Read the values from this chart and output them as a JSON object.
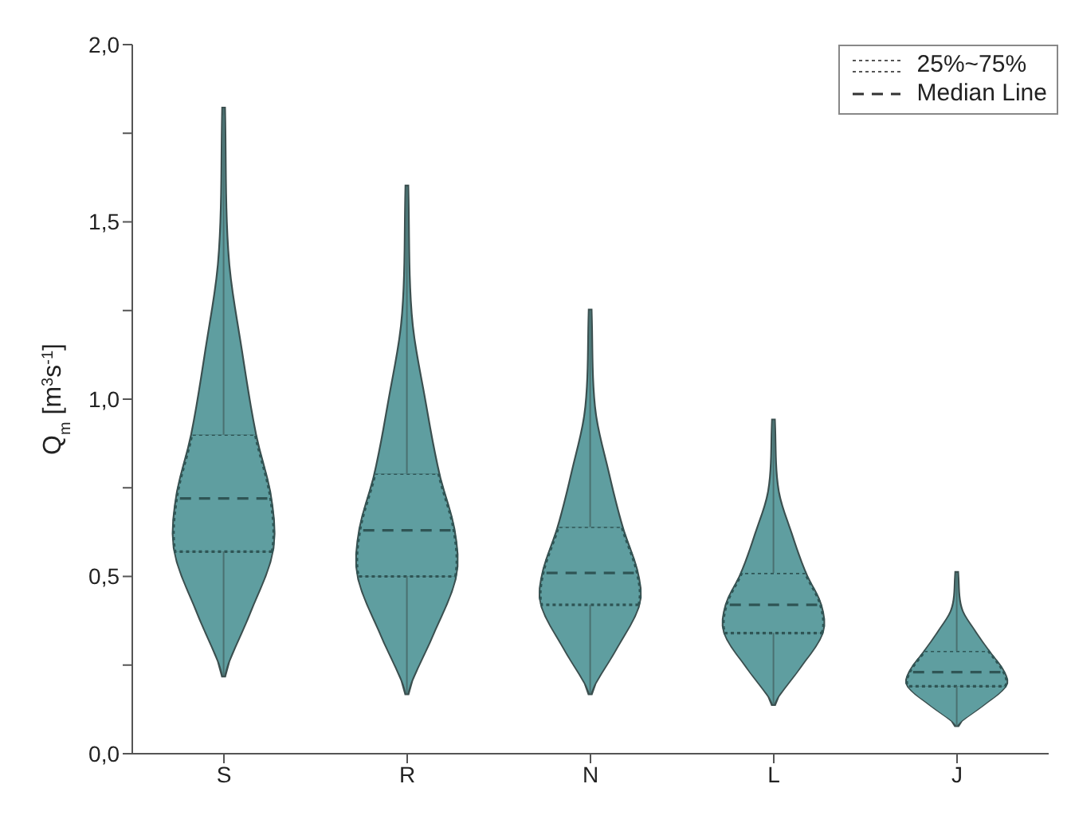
{
  "chart_data": {
    "type": "box",
    "ylabel": "Q$_{m}$ [m$^{3}$s$^{-1}$]",
    "categories": [
      "S",
      "R",
      "N",
      "L",
      "J"
    ],
    "color": "#5f9ea0",
    "boxes": [
      {
        "low": 0.22,
        "q1": 0.57,
        "median": 0.72,
        "q3": 0.9,
        "high": 1.82
      },
      {
        "low": 0.17,
        "q1": 0.5,
        "median": 0.63,
        "q3": 0.79,
        "high": 1.6
      },
      {
        "low": 0.17,
        "q1": 0.42,
        "median": 0.51,
        "q3": 0.64,
        "high": 1.25
      },
      {
        "low": 0.14,
        "q1": 0.34,
        "median": 0.42,
        "q3": 0.51,
        "high": 0.94
      },
      {
        "low": 0.08,
        "q1": 0.19,
        "median": 0.23,
        "q3": 0.29,
        "high": 0.51
      }
    ],
    "ylim": [
      0,
      2
    ],
    "yticks": [
      {
        "value": 0,
        "label": "0,0"
      },
      {
        "value": 0.25,
        "label": null
      },
      {
        "value": 0.5,
        "label": "0,5"
      },
      {
        "value": 0.75,
        "label": null
      },
      {
        "value": 1,
        "label": "1,0"
      },
      {
        "value": 1.25,
        "label": null
      },
      {
        "value": 1.5,
        "label": "1,5"
      },
      {
        "value": 1.75,
        "label": null
      },
      {
        "value": 2,
        "label": "2,0"
      }
    ],
    "annotations": [
      "25%~75%",
      "Median Line"
    ],
    "grid": false
  }
}
